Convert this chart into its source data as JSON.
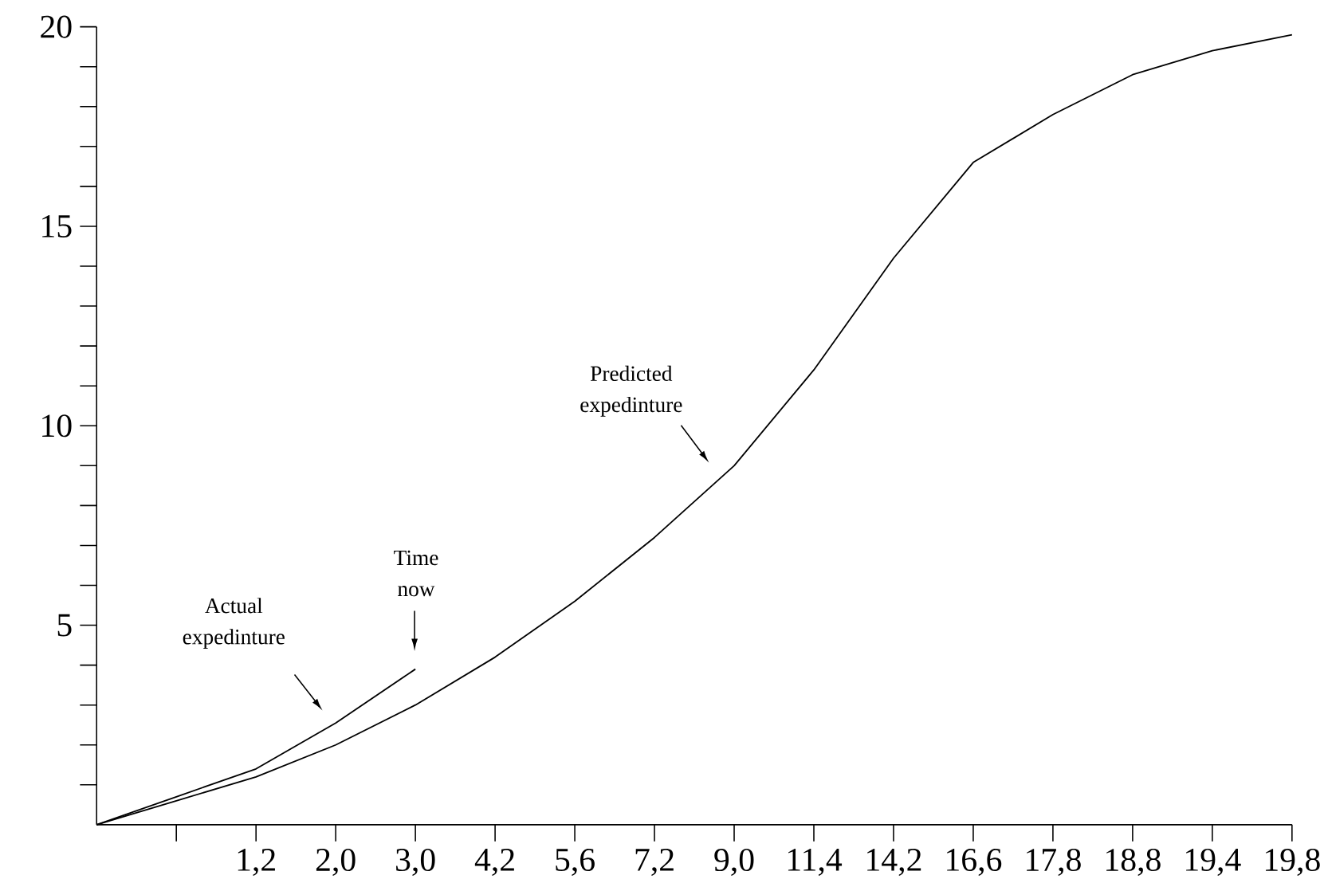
{
  "chart_data": {
    "type": "line",
    "categories": [
      null,
      null,
      "1,2",
      "2,0",
      "3,0",
      "4,2",
      "5,6",
      "7,2",
      "9,0",
      "11,4",
      "14,2",
      "16,6",
      "17,8",
      "18,8",
      "19,4",
      "19,8"
    ],
    "series": [
      {
        "color": "#000000",
        "values": [
          0,
          0.6,
          1.2,
          2.0,
          3.0,
          4.2,
          5.6,
          7.2,
          9.0,
          11.4,
          14.2,
          16.6,
          17.8,
          18.8,
          19.4,
          19.8
        ]
      },
      {
        "color": "#000000",
        "values": [
          0,
          0.7,
          1.4,
          2.55,
          3.9,
          null,
          null,
          null,
          null,
          null,
          null,
          null,
          null,
          null,
          null,
          null
        ]
      }
    ],
    "ylim": [
      0,
      20
    ],
    "line_style": "solid",
    "yticks": [
      {
        "value": 1,
        "label": null
      },
      {
        "value": 2,
        "label": null
      },
      {
        "value": 3,
        "label": null
      },
      {
        "value": 4,
        "label": null
      },
      5,
      {
        "value": 6,
        "label": null
      },
      {
        "value": 7,
        "label": null
      },
      {
        "value": 8,
        "label": null
      },
      {
        "value": 9,
        "label": null
      },
      10,
      {
        "value": 11,
        "label": null
      },
      {
        "value": 12,
        "label": null
      },
      {
        "value": 13,
        "label": null
      },
      {
        "value": 14,
        "label": null
      },
      15,
      {
        "value": 16,
        "label": null
      },
      {
        "value": 17,
        "label": null
      },
      {
        "value": 18,
        "label": null
      },
      {
        "value": 19,
        "label": null
      },
      20
    ],
    "annotations": [
      "Actual expedinture",
      "Time now",
      "Predicted expedinture"
    ]
  }
}
